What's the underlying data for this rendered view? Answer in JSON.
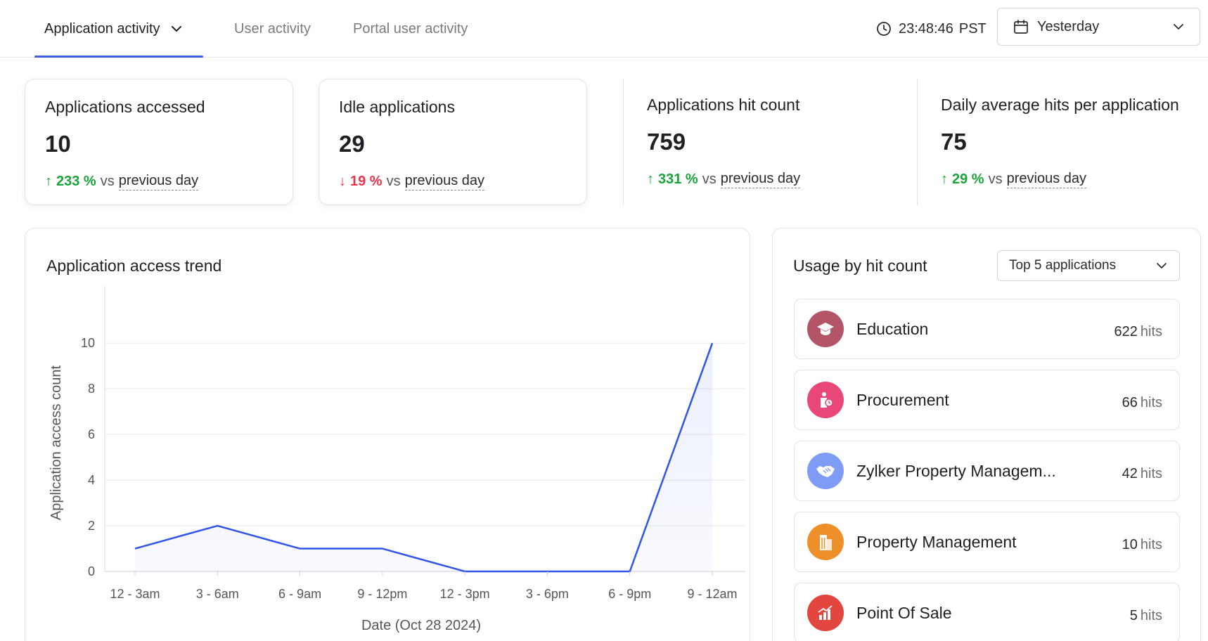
{
  "tabs": [
    {
      "label": "Application activity",
      "active": true
    },
    {
      "label": "User activity",
      "active": false
    },
    {
      "label": "Portal user activity",
      "active": false
    }
  ],
  "clock": {
    "time": "23:48:46",
    "tz": "PST"
  },
  "date_filter": {
    "selected": "Yesterday"
  },
  "stats": [
    {
      "label": "Applications accessed",
      "value": "10",
      "direction": "up",
      "change": "233 %",
      "vs": "vs",
      "compare": "previous day"
    },
    {
      "label": "Idle applications",
      "value": "29",
      "direction": "down",
      "change": "19 %",
      "vs": "vs",
      "compare": "previous day"
    },
    {
      "label": "Applications hit count",
      "value": "759",
      "direction": "up",
      "change": "331 %",
      "vs": "vs",
      "compare": "previous day"
    },
    {
      "label": "Daily average hits per application",
      "value": "75",
      "direction": "up",
      "change": "29 %",
      "vs": "vs",
      "compare": "previous day"
    }
  ],
  "colors": {
    "up": "#1aa33a",
    "down": "#e8334a",
    "accent": "#3c5fe6",
    "line": "#2f55e8"
  },
  "trend": {
    "title": "Application access trend"
  },
  "chart_data": {
    "type": "area",
    "title": "Application access trend",
    "xlabel": "Date (Oct 28 2024)",
    "ylabel": "Application access count",
    "categories": [
      "12 - 3am",
      "3 - 6am",
      "6 - 9am",
      "9 - 12pm",
      "12 - 3pm",
      "3 - 6pm",
      "6 - 9pm",
      "9 - 12am"
    ],
    "values": [
      1,
      2,
      1,
      1,
      0,
      0,
      0,
      10
    ],
    "yticks": [
      0,
      2,
      4,
      6,
      8,
      10
    ],
    "ylim": [
      0,
      12.5
    ],
    "grid": true,
    "legend": "none"
  },
  "usage": {
    "title": "Usage by hit count",
    "filter": "Top 5 applications",
    "hits_unit": "hits",
    "apps": [
      {
        "name": "Education",
        "hits": "622",
        "color": "#b45468",
        "icon": "graduation-cap-icon"
      },
      {
        "name": "Procurement",
        "hits": "66",
        "color": "#e9477a",
        "icon": "procurement-icon"
      },
      {
        "name": "Zylker Property Managem...",
        "hits": "42",
        "color": "#7e9cf5",
        "icon": "handshake-icon"
      },
      {
        "name": "Property Management",
        "hits": "10",
        "color": "#ee8f29",
        "icon": "building-icon"
      },
      {
        "name": "Point Of Sale",
        "hits": "5",
        "color": "#e2463f",
        "icon": "chart-up-icon"
      }
    ]
  }
}
